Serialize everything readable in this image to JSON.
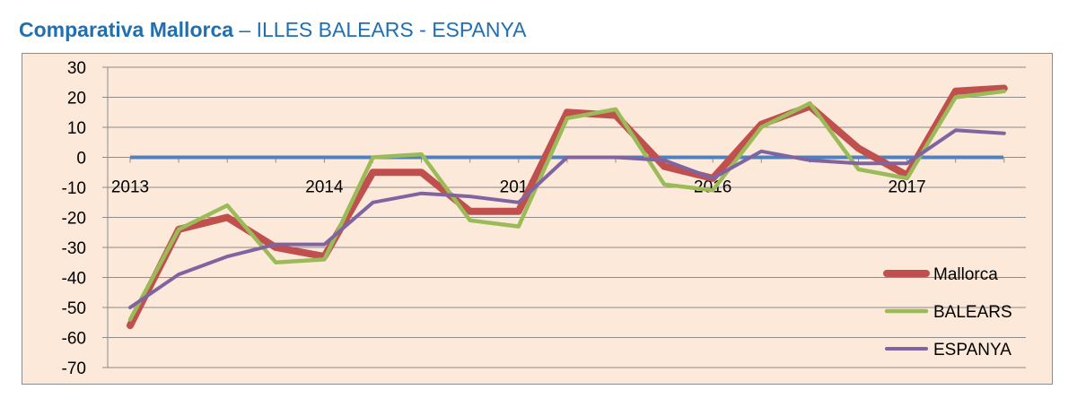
{
  "header": {
    "title_bold": "Comparativa Mallorca",
    "title_rest": " – ILLES BALEARS - ESPANYA"
  },
  "chart_data": {
    "type": "line",
    "title": "Comparativa Mallorca – ILLES BALEARS - ESPANYA",
    "xlabel": "",
    "ylabel": "",
    "ylim": [
      -70,
      30
    ],
    "yticks": [
      30,
      20,
      10,
      0,
      -10,
      -20,
      -30,
      -40,
      -50,
      -60,
      -70
    ],
    "x_tick_labels": [
      "2013",
      "2014",
      "2015",
      "2016",
      "2017"
    ],
    "points_per_year": 4,
    "grid": true,
    "legend_position": "bottom-right",
    "baseline": {
      "value": 0,
      "color": "#4f81bd"
    },
    "series": [
      {
        "name": "Mallorca",
        "color": "#c0504d",
        "values": [
          -56,
          -24,
          -20,
          -30,
          -33,
          -5,
          -5,
          -18,
          -18,
          15,
          14,
          -3,
          -7,
          11,
          17,
          3,
          -6,
          22,
          23
        ]
      },
      {
        "name": "BALEARS",
        "color": "#9bbb59",
        "values": [
          -54,
          -24,
          -16,
          -35,
          -34,
          0,
          1,
          -21,
          -23,
          13,
          16,
          -9,
          -11,
          10,
          18,
          -4,
          -7,
          20,
          22
        ]
      },
      {
        "name": "ESPANYA",
        "color": "#8064a2",
        "values": [
          -50,
          -39,
          -33,
          -29,
          -29,
          -15,
          -12,
          -13,
          -15,
          0,
          0,
          -1,
          -7,
          2,
          -1,
          -2,
          -2,
          9,
          8
        ]
      }
    ]
  }
}
